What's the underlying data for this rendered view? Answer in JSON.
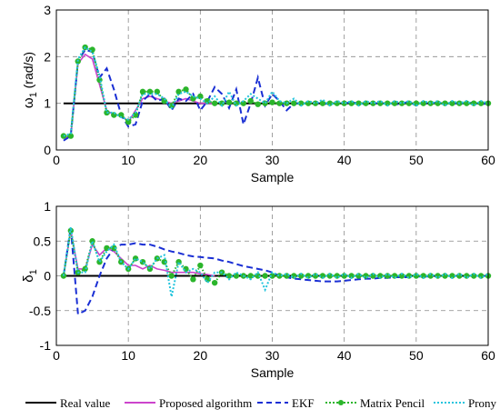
{
  "legend": [
    {
      "label": "Real value",
      "color": "#000000",
      "style": "solid"
    },
    {
      "label": "Proposed algorithm",
      "color": "#cc44cc",
      "style": "solid"
    },
    {
      "label": "EKF",
      "color": "#1a2fd4",
      "style": "dashed"
    },
    {
      "label": "Matrix Pencil",
      "color": "#2bb52b",
      "style": "dotted-marker"
    },
    {
      "label": "Prony",
      "color": "#22c4dd",
      "style": "dotted"
    }
  ],
  "chart_data": [
    {
      "type": "line",
      "ylabel_main": "ω",
      "ylabel_sub": "1",
      "ylabel_unit": " (rad/s)",
      "xlabel": "Sample",
      "xlim": [
        0,
        60
      ],
      "ylim": [
        0,
        3
      ],
      "xticks": [
        0,
        10,
        20,
        30,
        40,
        50,
        60
      ],
      "yticks": [
        0,
        1,
        2,
        3
      ],
      "grid": true,
      "series": [
        {
          "name": "Real value",
          "x": [
            1,
            60
          ],
          "values": [
            1,
            1
          ]
        },
        {
          "name": "Proposed algorithm",
          "x": [
            1,
            2,
            3,
            4,
            5,
            6,
            7,
            8,
            9,
            10,
            11,
            12,
            13,
            14,
            15,
            16,
            17,
            18,
            19,
            20,
            21,
            22
          ],
          "values": [
            0.25,
            0.3,
            1.85,
            2.05,
            1.95,
            1.4,
            0.85,
            0.75,
            0.75,
            0.6,
            0.85,
            1.1,
            1.15,
            1.1,
            1.05,
            1.0,
            1.05,
            1.1,
            1.05,
            1.0,
            1.0,
            1.0
          ]
        },
        {
          "name": "EKF",
          "x": [
            1,
            2,
            3,
            4,
            5,
            6,
            7,
            8,
            9,
            10,
            11,
            12,
            13,
            14,
            15,
            16,
            17,
            18,
            19,
            20,
            21,
            22,
            23,
            24,
            25,
            26,
            27,
            28,
            29,
            30,
            31,
            32,
            33,
            34,
            35,
            36,
            37,
            38,
            39,
            40,
            41,
            42,
            43,
            44,
            45,
            46,
            47,
            48,
            49,
            50,
            51,
            52,
            53,
            54,
            55,
            56,
            57,
            58,
            59,
            60
          ],
          "values": [
            0.2,
            0.3,
            1.9,
            2.15,
            2.1,
            1.55,
            1.75,
            1.3,
            0.75,
            0.5,
            0.55,
            1.05,
            1.2,
            1.05,
            1.1,
            0.85,
            1.1,
            1.05,
            1.2,
            0.85,
            1.05,
            1.35,
            1.2,
            0.9,
            1.3,
            0.55,
            1.0,
            1.55,
            0.95,
            1.2,
            1.05,
            0.85,
            1.0,
            1.0,
            1.0,
            1.02,
            0.98,
            1.0,
            1.0,
            1.0,
            1.02,
            1.0,
            0.98,
            1.0,
            1.0,
            1.0,
            0.97,
            1.0,
            1.03,
            0.95,
            1.0,
            1.0,
            1.02,
            0.98,
            1.0,
            1.0,
            1.0,
            1.02,
            0.98,
            1.0
          ]
        },
        {
          "name": "Matrix Pencil",
          "x": [
            1,
            2,
            3,
            4,
            5,
            6,
            7,
            8,
            9,
            10,
            11,
            12,
            13,
            14,
            15,
            16,
            17,
            18,
            19,
            20,
            21,
            22,
            23,
            24,
            25,
            26,
            27,
            28,
            29,
            30,
            31,
            32,
            33,
            34,
            35,
            36,
            37,
            38,
            39,
            40,
            41,
            42,
            43,
            44,
            45,
            46,
            47,
            48,
            49,
            50,
            51,
            52,
            53,
            54,
            55,
            56,
            57,
            58,
            59,
            60
          ],
          "values": [
            0.3,
            0.3,
            1.9,
            2.2,
            2.15,
            1.5,
            0.8,
            0.75,
            0.75,
            0.6,
            0.75,
            1.25,
            1.25,
            1.25,
            1.05,
            0.95,
            1.25,
            1.3,
            1.1,
            1.15,
            1.05,
            1.0,
            1.0,
            1.02,
            1.0,
            1.0,
            1.05,
            0.98,
            1.0,
            1.02,
            1.0,
            1.0,
            1.0,
            1.0,
            1.0,
            1.0,
            1.0,
            1.0,
            1.0,
            1.0,
            1.0,
            1.0,
            1.0,
            1.0,
            1.0,
            1.0,
            1.0,
            1.0,
            1.0,
            1.0,
            1.0,
            1.0,
            1.0,
            1.0,
            1.0,
            1.0,
            1.0,
            1.0,
            1.0,
            1.0
          ]
        },
        {
          "name": "Prony",
          "x": [
            1,
            2,
            3,
            4,
            5,
            6,
            7,
            8,
            9,
            10,
            11,
            12,
            13,
            14,
            15,
            16,
            17,
            18,
            19,
            20,
            21,
            22,
            23,
            24,
            25,
            26,
            27,
            28,
            29,
            30,
            31,
            32,
            33,
            34,
            35,
            36,
            37,
            38,
            39,
            40,
            41,
            42,
            43,
            44,
            45,
            46,
            47,
            48,
            49,
            50,
            51,
            52,
            53,
            54,
            55,
            56,
            57,
            58,
            59,
            60
          ],
          "values": [
            0.3,
            0.35,
            1.95,
            2.2,
            2.1,
            1.6,
            0.8,
            0.8,
            0.7,
            0.65,
            0.8,
            1.2,
            1.2,
            1.2,
            1.1,
            0.9,
            1.2,
            1.25,
            1.15,
            1.1,
            1.0,
            1.15,
            0.95,
            1.25,
            0.95,
            1.05,
            1.2,
            1.1,
            1.0,
            1.25,
            1.05,
            1.0,
            1.1,
            0.95,
            1.05,
            1.0,
            1.08,
            0.95,
            1.05,
            1.0,
            1.05,
            0.95,
            1.05,
            1.0,
            1.05,
            0.95,
            1.05,
            1.0,
            1.05,
            0.95,
            1.05,
            1.0,
            1.05,
            0.95,
            1.05,
            1.0,
            1.05,
            0.95,
            1.05,
            1.0
          ]
        }
      ]
    },
    {
      "type": "line",
      "ylabel_main": "δ",
      "ylabel_sub": "1",
      "ylabel_unit": "",
      "xlabel": "Sample",
      "xlim": [
        0,
        60
      ],
      "ylim": [
        -1,
        1
      ],
      "xticks": [
        0,
        10,
        20,
        30,
        40,
        50,
        60
      ],
      "yticks": [
        -1,
        -0.5,
        0,
        0.5,
        1
      ],
      "grid": true,
      "series": [
        {
          "name": "Real value",
          "x": [
            1,
            60
          ],
          "values": [
            0,
            0
          ]
        },
        {
          "name": "Proposed algorithm",
          "x": [
            1,
            2,
            3,
            4,
            5,
            6,
            7,
            8,
            9,
            10,
            11,
            12,
            13,
            14,
            15,
            16,
            17,
            18,
            19,
            20,
            21,
            22
          ],
          "values": [
            0,
            0.65,
            0.1,
            0.1,
            0.45,
            0.3,
            0.4,
            0.35,
            0.25,
            0.15,
            0.15,
            0.1,
            0.15,
            0.1,
            0.08,
            0.05,
            0.05,
            0.05,
            0.05,
            0.03,
            0.02,
            0.0
          ]
        },
        {
          "name": "EKF",
          "x": [
            1,
            2,
            3,
            4,
            5,
            6,
            7,
            8,
            9,
            10,
            11,
            12,
            13,
            14,
            15,
            16,
            17,
            18,
            19,
            20,
            21,
            22,
            23,
            24,
            25,
            26,
            27,
            28,
            29,
            30,
            31,
            32,
            33,
            34,
            35,
            36,
            37,
            38,
            39,
            40,
            41,
            42,
            43,
            44,
            45,
            46,
            47,
            48,
            49,
            50,
            51,
            52,
            53,
            54,
            55,
            56,
            57,
            58,
            59,
            60
          ],
          "values": [
            0,
            0.7,
            -0.55,
            -0.5,
            -0.3,
            0.0,
            0.25,
            0.4,
            0.45,
            0.45,
            0.47,
            0.45,
            0.45,
            0.42,
            0.38,
            0.35,
            0.33,
            0.3,
            0.28,
            0.27,
            0.26,
            0.25,
            0.22,
            0.2,
            0.17,
            0.14,
            0.12,
            0.1,
            0.08,
            0.05,
            0.0,
            -0.02,
            -0.04,
            -0.05,
            -0.06,
            -0.07,
            -0.08,
            -0.08,
            -0.08,
            -0.07,
            -0.06,
            -0.05,
            -0.04,
            -0.04,
            -0.03,
            -0.03,
            -0.02,
            -0.02,
            -0.02,
            -0.01,
            -0.01,
            -0.01,
            0,
            0,
            0,
            0,
            0,
            0,
            0,
            0
          ]
        },
        {
          "name": "Matrix Pencil",
          "x": [
            1,
            2,
            3,
            4,
            5,
            6,
            7,
            8,
            9,
            10,
            11,
            12,
            13,
            14,
            15,
            16,
            17,
            18,
            19,
            20,
            21,
            22,
            23,
            24,
            25,
            26,
            27,
            28,
            29,
            30,
            31,
            32,
            33,
            34,
            35,
            36,
            37,
            38,
            39,
            40,
            41,
            42,
            43,
            44,
            45,
            46,
            47,
            48,
            49,
            50,
            51,
            52,
            53,
            54,
            55,
            56,
            57,
            58,
            59,
            60
          ],
          "values": [
            0,
            0.65,
            0.05,
            0.1,
            0.5,
            0.2,
            0.4,
            0.4,
            0.2,
            0.1,
            0.25,
            0.2,
            0.1,
            0.25,
            0.2,
            0.0,
            0.2,
            0.1,
            -0.05,
            0.15,
            -0.05,
            -0.1,
            0.05,
            0.0,
            0.0,
            0.0,
            0.0,
            0.0,
            0.0,
            0.0,
            0.0,
            0.0,
            0.0,
            0.0,
            0.0,
            0.0,
            0.0,
            0.0,
            0.0,
            0.0,
            0.0,
            0.0,
            0.0,
            0.0,
            0.0,
            0.0,
            0.0,
            0.0,
            0.0,
            0.0,
            0.0,
            0.0,
            0.0,
            0.0,
            0.0,
            0.0,
            0.0,
            0.0,
            0.0,
            0.0
          ]
        },
        {
          "name": "Prony",
          "x": [
            1,
            2,
            3,
            4,
            5,
            6,
            7,
            8,
            9,
            10,
            11,
            12,
            13,
            14,
            15,
            16,
            17,
            18,
            19,
            20,
            21,
            22,
            23,
            24,
            25,
            26,
            27,
            28,
            29,
            30,
            31,
            32,
            33,
            34,
            35,
            36,
            37,
            38,
            39,
            40,
            41,
            42,
            43,
            44,
            45,
            46,
            47,
            48,
            49,
            50,
            51,
            52,
            53,
            54,
            55,
            56,
            57,
            58,
            59,
            60
          ],
          "values": [
            0,
            0.7,
            0.05,
            0.05,
            0.5,
            0.2,
            0.35,
            0.45,
            0.2,
            0.1,
            0.25,
            0.2,
            0.1,
            0.25,
            0.3,
            -0.3,
            0.2,
            0.05,
            0.1,
            0.05,
            -0.1,
            0.05,
            0.05,
            -0.05,
            0.05,
            0.0,
            -0.05,
            0.05,
            -0.2,
            0.05,
            0.0,
            0.03,
            -0.03,
            0.03,
            -0.03,
            0.03,
            -0.03,
            0.03,
            -0.03,
            0.03,
            -0.03,
            0.03,
            -0.03,
            0.03,
            -0.03,
            0.03,
            -0.03,
            0.03,
            -0.03,
            0.03,
            -0.03,
            0.03,
            -0.03,
            0.03,
            -0.03,
            0.03,
            -0.03,
            0.03,
            -0.03,
            0.03
          ]
        }
      ]
    }
  ]
}
